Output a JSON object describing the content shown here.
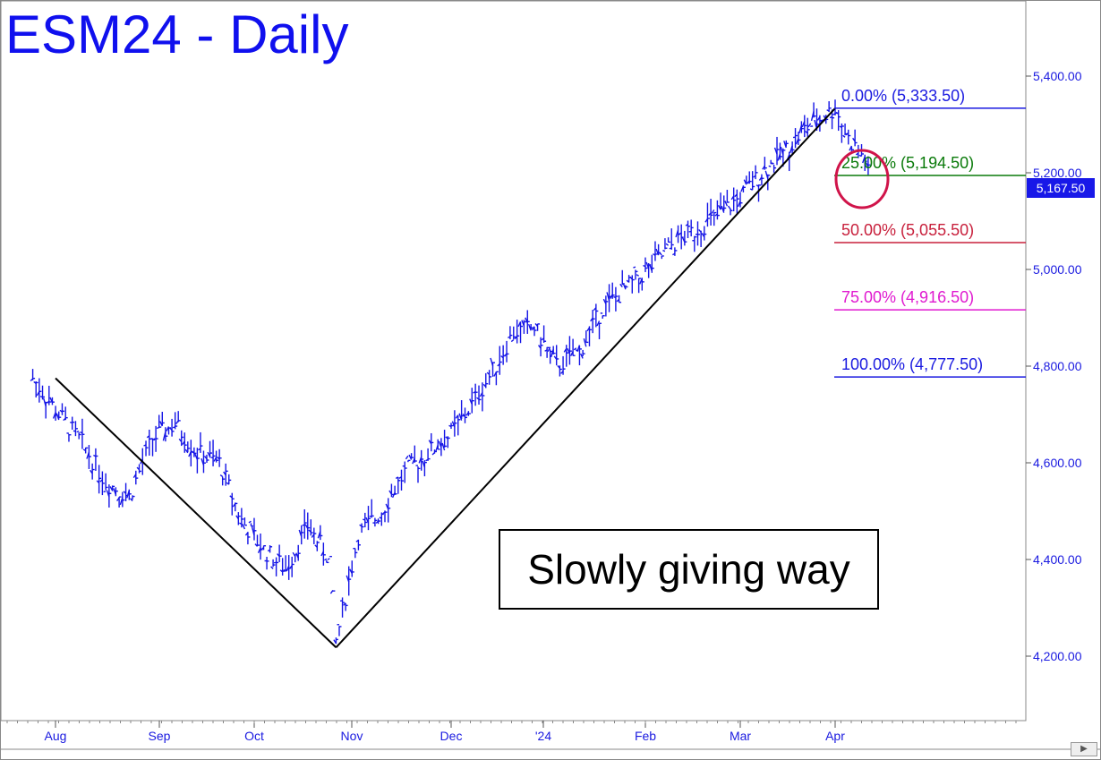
{
  "title": "ESM24 - Daily",
  "annotation": "Slowly giving way",
  "last_price_label": "5,167.50",
  "colors": {
    "price_bars": "#1414e6",
    "title": "#1010ee",
    "trendline": "#000000",
    "marker_circle": "#d0144a",
    "last_price_tag": "#1818e8"
  },
  "chart_data": {
    "type": "line",
    "title": "ESM24 - Daily",
    "y_axis": {
      "position": "right",
      "range": [
        4050,
        5530
      ],
      "ticks": [
        4200,
        4400,
        4600,
        4800,
        5000,
        5200,
        5400
      ],
      "tick_labels": [
        "4,200.00",
        "4,400.00",
        "4,600.00",
        "4,800.00",
        "5,000.00",
        "5,200.00",
        "5,400.00"
      ]
    },
    "x_axis": {
      "labels": [
        "Aug",
        "Sep",
        "Oct",
        "Nov",
        "Dec",
        "'24",
        "Feb",
        "Mar",
        "Apr"
      ]
    },
    "grid": false,
    "series": [
      {
        "x": [
          "Jul 26",
          "Aug 2",
          "Aug 9",
          "Aug 16",
          "Aug 23",
          "Aug 30",
          "Sep 6",
          "Sep 13",
          "Sep 20",
          "Sep 27",
          "Oct 4",
          "Oct 11",
          "Oct 18",
          "Oct 25",
          "Oct 27",
          "Nov 3",
          "Nov 10",
          "Nov 17",
          "Nov 24",
          "Dec 1",
          "Dec 8",
          "Dec 15",
          "Dec 22",
          "Dec 29",
          "Jan 5",
          "Jan 12",
          "Jan 19",
          "Jan 26",
          "Feb 2",
          "Feb 9",
          "Feb 16",
          "Feb 23",
          "Mar 1",
          "Mar 8",
          "Mar 15",
          "Mar 22",
          "Mar 29",
          "Apr 1",
          "Apr 5",
          "Apr 10",
          "Apr 12"
        ],
        "values": [
          4775,
          4700,
          4640,
          4560,
          4530,
          4650,
          4680,
          4620,
          4600,
          4480,
          4420,
          4380,
          4470,
          4400,
          4230,
          4450,
          4500,
          4580,
          4620,
          4660,
          4720,
          4790,
          4870,
          4880,
          4800,
          4830,
          4920,
          4960,
          5000,
          5050,
          5080,
          5110,
          5150,
          5200,
          5240,
          5290,
          5320,
          5333.5,
          5270,
          5230,
          5167.5
        ]
      }
    ],
    "trendlines": [
      {
        "from": {
          "x": "Aug 1",
          "y": 4775
        },
        "to": {
          "x": "Oct 27",
          "y": 4218
        }
      },
      {
        "from": {
          "x": "Oct 27",
          "y": 4218
        },
        "to": {
          "x": "Apr 1",
          "y": 5333.5
        }
      }
    ],
    "fibonacci_levels": [
      {
        "label": "0.00% (5,333.50)",
        "value": 5333.5,
        "color": "#1a1ae0"
      },
      {
        "label": "25.00% (5,194.50)",
        "value": 5194.5,
        "color": "#0a7a0a"
      },
      {
        "label": "50.00% (5,055.50)",
        "value": 5055.5,
        "color": "#c8203c"
      },
      {
        "label": "75.00% (4,916.50)",
        "value": 4916.5,
        "color": "#e01ad0"
      },
      {
        "label": "100.00% (4,777.50)",
        "value": 4777.5,
        "color": "#1a1ae0"
      }
    ],
    "last_price": 5167.5
  }
}
